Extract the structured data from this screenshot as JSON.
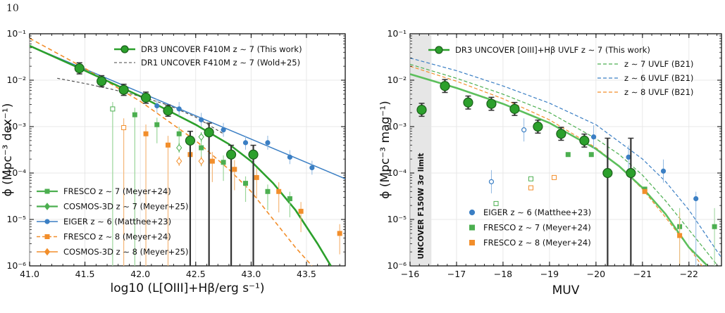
{
  "page_number": "10",
  "colors": {
    "green_dark": "#2ca02c",
    "green": "#4caf50",
    "blue": "#3b7fc4",
    "orange": "#f28e2b",
    "light_green": "#8fd18f",
    "limit_band": "#e6e6e6"
  },
  "chart_data": [
    {
      "type": "scatter",
      "xscale": "linear",
      "yscale": "log",
      "xlim": [
        41.0,
        43.85
      ],
      "ylim": [
        1e-06,
        0.1
      ],
      "xlabel": "log10 (L[OIII]+Hβ/erg s⁻¹)",
      "ylabel": "ϕ (Mpc⁻³ dex⁻¹)",
      "xticks": [
        "41.0",
        "41.5",
        "42.0",
        "42.5",
        "43.0",
        "43.5"
      ],
      "xtick_values": [
        41.0,
        41.5,
        42.0,
        42.5,
        43.0,
        43.5
      ],
      "yticks": [
        "10⁻⁶",
        "10⁻⁵",
        "10⁻⁴",
        "10⁻³",
        "10⁻²",
        "10⁻¹"
      ],
      "legend_top": [
        "DR3 UNCOVER F410M z ∼ 7 (This work)",
        "DR1 UNCOVER F410M z ∼ 7 (Wold+25)"
      ],
      "legend_bottom": [
        "FRESCO z ∼ 7 (Meyer+24)",
        "COSMOS-3D z ∼ 7 (Meyer+25)",
        "EIGER z ∼ 6 (Matthee+23)",
        "FRESCO z ∼ 8 (Meyer+24)",
        "COSMOS-3D z ∼ 8 (Meyer+25)"
      ],
      "series": [
        {
          "name": "DR3 UNCOVER F410M z ∼ 7 (This work)",
          "kind": "points",
          "x": [
            41.45,
            41.65,
            41.85,
            42.05,
            42.25,
            42.45,
            42.62,
            42.82,
            43.02
          ],
          "y": [
            0.018,
            0.0095,
            0.0062,
            0.0042,
            0.0022,
            0.0005,
            0.00075,
            0.00025,
            0.00025
          ]
        },
        {
          "name": "DR3 UNCOVER fit",
          "kind": "curve",
          "x": [
            41.0,
            41.5,
            42.0,
            42.5,
            42.8,
            43.0,
            43.2,
            43.4,
            43.6,
            43.72
          ],
          "y": [
            0.055,
            0.016,
            0.0045,
            0.0011,
            0.00042,
            0.00018,
            6e-05,
            1.6e-05,
            3e-06,
            1e-06
          ]
        },
        {
          "name": "DR1 UNCOVER F410M z ∼ 7 (Wold+25)",
          "kind": "curve",
          "x": [
            41.25,
            41.5,
            41.75,
            42.0,
            42.25,
            42.5,
            42.75
          ],
          "y": [
            0.011,
            0.0085,
            0.0063,
            0.0045,
            0.0029,
            0.0016,
            0.0007
          ]
        },
        {
          "name": "EIGER z ∼ 6 (Matthee+23)",
          "kind": "points",
          "x": [
            42.15,
            42.35,
            42.55,
            42.75,
            42.95,
            43.15,
            43.35,
            43.55
          ],
          "y": [
            0.0028,
            0.0024,
            0.0014,
            0.00085,
            0.00045,
            0.00045,
            0.00022,
            0.00013
          ]
        },
        {
          "name": "EIGER line",
          "kind": "curve",
          "x": [
            41.0,
            43.85
          ],
          "y": [
            0.055,
            7.5e-05
          ]
        },
        {
          "name": "FRESCO z ∼ 7 (Meyer+24)",
          "kind": "points",
          "x": [
            41.75,
            41.95,
            42.15,
            42.35,
            42.55,
            42.75,
            42.95,
            43.15,
            43.35
          ],
          "y": [
            0.0024,
            0.0018,
            0.0011,
            0.0007,
            0.00035,
            0.00017,
            6e-05,
            4e-05,
            2.8e-05
          ]
        },
        {
          "name": "FRESCO z ∼ 8 (Meyer+24)",
          "kind": "points",
          "x": [
            41.85,
            42.05,
            42.25,
            42.45,
            42.65,
            42.85,
            43.05,
            43.25,
            43.45,
            43.8
          ],
          "y": [
            0.00095,
            0.0007,
            0.0004,
            0.00025,
            0.00018,
            0.00012,
            8e-05,
            4e-05,
            1.5e-05,
            5e-06
          ]
        },
        {
          "name": "COSMOS-3D z ∼ 7 (Meyer+25)",
          "kind": "points",
          "x": [
            42.35,
            42.55
          ],
          "y": [
            0.00035,
            0.0006
          ]
        },
        {
          "name": "COSMOS-3D z ∼ 8 (Meyer+25)",
          "kind": "points",
          "x": [
            42.35,
            42.55
          ],
          "y": [
            0.00018,
            0.00018
          ]
        },
        {
          "name": "FRESCO z ∼ 8 fit",
          "kind": "curve",
          "x": [
            41.0,
            41.5,
            42.0,
            42.5,
            42.8,
            43.0,
            43.2,
            43.4,
            43.55
          ],
          "y": [
            0.08,
            0.018,
            0.0035,
            0.0005,
            0.00012,
            4e-05,
            1e-05,
            2.5e-06,
            1e-06
          ]
        }
      ]
    },
    {
      "type": "scatter",
      "xscale": "linear",
      "yscale": "log",
      "xlim": [
        -16.0,
        -22.7
      ],
      "ylim": [
        1e-06,
        0.1
      ],
      "xlabel": "MUV",
      "ylabel": "ϕ (Mpc⁻³ mag⁻¹)",
      "xticks": [
        "−16",
        "−17",
        "−18",
        "−19",
        "−20",
        "−21",
        "−22"
      ],
      "xtick_values": [
        -16,
        -17,
        -18,
        -19,
        -20,
        -21,
        -22
      ],
      "yticks": [
        "10⁻⁶",
        "10⁻⁵",
        "10⁻⁴",
        "10⁻³",
        "10⁻²",
        "10⁻¹"
      ],
      "limit_band": {
        "x_from": -16.0,
        "x_to": -16.45,
        "label": "UNCOVER F150W 3σ limit"
      },
      "legend_top": [
        "DR3 UNCOVER [OIII]+Hβ UVLF z ∼ 7 (This work)",
        "z ∼ 7 UVLF (B21)",
        "z ∼ 6 UVLF (B21)",
        "z ∼ 8 UVLF (B21)"
      ],
      "legend_bottom": [
        "EIGER z ∼ 6 (Matthee+23)",
        "FRESCO z ∼ 7 (Meyer+24)",
        "FRESCO z ∼ 8 (Meyer+24)"
      ],
      "series": [
        {
          "name": "DR3 UNCOVER [OIII]+Hβ UVLF z ∼ 7 (This work)",
          "kind": "points",
          "x": [
            -16.25,
            -16.75,
            -17.25,
            -17.75,
            -18.25,
            -18.75,
            -19.25,
            -19.75,
            -20.25,
            -20.75
          ],
          "y": [
            0.0023,
            0.0075,
            0.0033,
            0.0031,
            0.0024,
            0.001,
            0.0007,
            0.0005,
            0.0001,
            0.0001
          ]
        },
        {
          "name": "DR3 fit",
          "kind": "curve",
          "x": [
            -16.0,
            -17.0,
            -18.0,
            -19.0,
            -20.0,
            -20.5,
            -21.0,
            -21.5,
            -22.0,
            -22.4
          ],
          "y": [
            0.0135,
            0.0068,
            0.0031,
            0.0012,
            0.00033,
            0.00014,
            4.8e-05,
            1.3e-05,
            2.5e-06,
            1e-06
          ]
        },
        {
          "name": "z ∼ 7 UVLF (B21)",
          "kind": "curve",
          "x": [
            -16.0,
            -17.0,
            -18.0,
            -19.0,
            -20.0,
            -20.5,
            -21.0,
            -21.5,
            -22.0,
            -22.7
          ],
          "y": [
            0.022,
            0.011,
            0.005,
            0.002,
            0.00055,
            0.00025,
            9e-05,
            2.5e-05,
            6e-06,
            8e-07
          ]
        },
        {
          "name": "z ∼ 6 UVLF (B21)",
          "kind": "curve",
          "x": [
            -16.0,
            -17.0,
            -18.0,
            -19.0,
            -20.0,
            -21.0,
            -21.5,
            -22.0,
            -22.7
          ],
          "y": [
            0.03,
            0.016,
            0.0075,
            0.0032,
            0.0011,
            0.0002,
            6.5e-05,
            1.6e-05,
            1.5e-06
          ]
        },
        {
          "name": "z ∼ 8 UVLF (B21)",
          "kind": "curve",
          "x": [
            -16.0,
            -17.0,
            -18.0,
            -19.0,
            -20.0,
            -20.5,
            -21.0,
            -21.5,
            -22.0,
            -22.35
          ],
          "y": [
            0.02,
            0.0095,
            0.004,
            0.0014,
            0.00035,
            0.00014,
            4.5e-05,
            1.1e-05,
            2.5e-06,
            8e-07
          ]
        },
        {
          "name": "EIGER z ∼ 6 (Matthee+23)",
          "kind": "points",
          "x": [
            -17.75,
            -18.45,
            -19.95,
            -20.7,
            -21.45,
            -22.15
          ],
          "y": [
            6.5e-05,
            0.00085,
            0.0006,
            0.00022,
            0.00011,
            2.8e-05
          ]
        },
        {
          "name": "FRESCO z ∼ 7 (Meyer+24)",
          "kind": "points",
          "x": [
            -17.85,
            -18.6,
            -19.4,
            -19.9,
            -21.05,
            -21.8,
            -22.55
          ],
          "y": [
            2.2e-05,
            7.5e-05,
            0.00025,
            0.00025,
            4.5e-05,
            7e-06,
            7e-06
          ]
        },
        {
          "name": "FRESCO z ∼ 8 (Meyer+24)",
          "kind": "points",
          "x": [
            -18.6,
            -19.1,
            -21.05,
            -21.8
          ],
          "y": [
            4.8e-05,
            8e-05,
            4e-05,
            4.5e-06
          ]
        }
      ]
    }
  ]
}
